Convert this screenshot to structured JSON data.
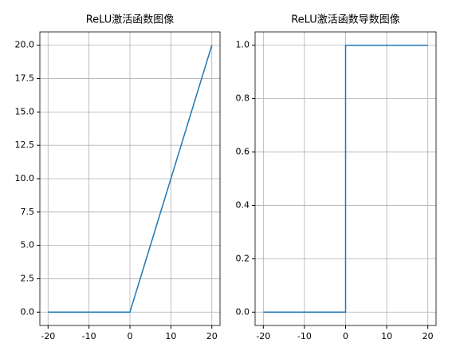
{
  "chart_data": [
    {
      "type": "line",
      "title": "ReLU激活函数图像",
      "x": [
        -20,
        0,
        20
      ],
      "series": [
        {
          "color": "#1f77b4",
          "values": [
            0,
            0,
            20
          ]
        }
      ],
      "xlim": [
        -22,
        22
      ],
      "xticks": [
        -20,
        -10,
        0,
        10,
        20
      ],
      "ylim": [
        -1,
        21
      ],
      "yticks": [
        {
          "value": 0,
          "label": "0.0"
        },
        2.5,
        {
          "value": 5,
          "label": "5.0"
        },
        7.5,
        {
          "value": 10,
          "label": "10.0"
        },
        12.5,
        {
          "value": 15,
          "label": "15.0"
        },
        17.5,
        {
          "value": 20,
          "label": "20.0"
        }
      ],
      "grid": true
    },
    {
      "type": "line",
      "title": "ReLU激活函数导数图像",
      "x": [
        -20,
        0,
        0,
        20
      ],
      "series": [
        {
          "color": "#1f77b4",
          "values": [
            0,
            0,
            1,
            1
          ]
        }
      ],
      "xlim": [
        -22,
        22
      ],
      "xticks": [
        -20,
        -10,
        0,
        10,
        20
      ],
      "ylim": [
        -0.05,
        1.05
      ],
      "yticks": [
        {
          "value": 0,
          "label": "0.0"
        },
        0.2,
        0.4,
        0.6,
        0.8,
        {
          "value": 1,
          "label": "1.0"
        }
      ],
      "grid": true
    }
  ]
}
